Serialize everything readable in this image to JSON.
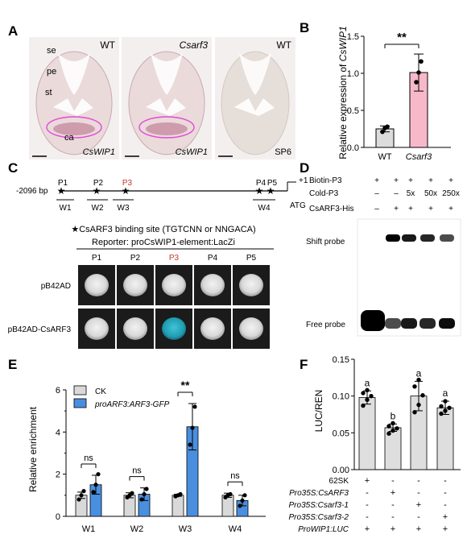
{
  "colors": {
    "wt": "#dcdcdc",
    "csarf3": "#f7b9ca",
    "ck": "#d9d9d9",
    "gfp": "#4a8fdf",
    "bar": "#dedede",
    "tissue": "#eadada",
    "stain": "#b76a86",
    "ring": "#e34bd6",
    "yeast_bg": "#1b1b1b",
    "colony": "#dedede",
    "colony_blue": "#2bb0c6"
  },
  "panelA": {
    "letter": "A",
    "images": [
      {
        "title": "WT",
        "caption": "CsWIP1",
        "stained": true,
        "labels": [
          "se",
          "pe",
          "st",
          "ca"
        ]
      },
      {
        "title": "Csarf3",
        "caption": "CsWIP1",
        "stained": true,
        "labels": []
      },
      {
        "title": "WT",
        "caption": "SP6",
        "stained": false,
        "labels": []
      }
    ]
  },
  "panelB": {
    "letter": "B",
    "chart_data": {
      "type": "bar",
      "categories": [
        "WT",
        "Csarf3"
      ],
      "values": [
        0.25,
        1.01
      ],
      "errors": [
        0.04,
        0.25
      ],
      "points": [
        [
          0.21,
          0.26,
          0.28
        ],
        [
          0.88,
          1.01,
          1.16
        ]
      ],
      "ylabel_prefix": "Relative expression of ",
      "ylabel_gene": "CsWIP1",
      "ylim": [
        0,
        1.5
      ],
      "yticks": [
        "0.0",
        "0.5",
        "1.0",
        "1.5"
      ],
      "significance": "**"
    }
  },
  "panelC": {
    "letter": "C",
    "start": "-2096 bp",
    "tss": "+1",
    "atg": "ATG",
    "sites": [
      "P1",
      "P2",
      "P3",
      "P4",
      "P5"
    ],
    "regions": [
      "W1",
      "W2",
      "W3",
      "W4"
    ],
    "legend": "★CsARF3 binding site (TGTCNN or NNGACA)",
    "reporter": "Reporter: proCsWIP1-element:LacZi",
    "rows": [
      {
        "label": "pB42AD",
        "blue": [
          false,
          false,
          false,
          false,
          false
        ]
      },
      {
        "label": "pB42AD-CsARF3",
        "blue": [
          false,
          false,
          true,
          false,
          false
        ]
      }
    ]
  },
  "panelD": {
    "letter": "D",
    "rows": [
      {
        "label": "Biotin-P3",
        "values": [
          "+",
          "+",
          "+",
          "+",
          "+"
        ]
      },
      {
        "label": "Cold-P3",
        "values": [
          "–",
          "–",
          "5x",
          "50x",
          "250x"
        ]
      },
      {
        "label": "CsARF3-His",
        "values": [
          "–",
          "+",
          "+",
          "+",
          "+"
        ]
      }
    ],
    "shift_label": "Shift probe",
    "free_label": "Free probe"
  },
  "panelE": {
    "letter": "E",
    "chart_data": {
      "type": "bar",
      "categories": [
        "W1",
        "W2",
        "W3",
        "W4"
      ],
      "series": [
        {
          "name": "CK",
          "values": [
            1.0,
            1.0,
            1.0,
            1.0
          ],
          "errors": [
            0.15,
            0.12,
            0.05,
            0.1
          ],
          "points": [
            [
              0.8,
              1.0,
              1.2
            ],
            [
              0.9,
              1.0,
              1.1
            ],
            [
              0.95,
              1.0,
              1.05
            ],
            [
              0.9,
              1.0,
              1.05
            ]
          ]
        },
        {
          "name": "proARF3:ARF3-GFP",
          "values": [
            1.5,
            1.05,
            4.25,
            0.75
          ],
          "errors": [
            0.45,
            0.3,
            1.1,
            0.25
          ],
          "points": [
            [
              1.15,
              1.5,
              2.0
            ],
            [
              0.8,
              1.05,
              1.3
            ],
            [
              3.4,
              4.2,
              5.2
            ],
            [
              0.5,
              0.75,
              1.0
            ]
          ]
        }
      ],
      "ylabel": "Relative enrichment",
      "ylim": [
        0,
        6
      ],
      "yticks": [
        "0",
        "2",
        "4",
        "6"
      ],
      "significance": [
        "ns",
        "ns",
        "**",
        "ns"
      ]
    }
  },
  "panelF": {
    "letter": "F",
    "chart_data": {
      "type": "bar",
      "categories": [
        "62SK",
        "Pro35S:CsARF3",
        "Pro35S:Csarf3-1",
        "Pro35S:Csarf3-2"
      ],
      "values": [
        0.098,
        0.057,
        0.1,
        0.084
      ],
      "errors": [
        0.009,
        0.005,
        0.02,
        0.009
      ],
      "points": [
        [
          0.087,
          0.095,
          0.1,
          0.104,
          0.108
        ],
        [
          0.049,
          0.053,
          0.056,
          0.059,
          0.063
        ],
        [
          0.078,
          0.088,
          0.101,
          0.113,
          0.122
        ],
        [
          0.076,
          0.08,
          0.084,
          0.086,
          0.093
        ]
      ],
      "letters": [
        "a",
        "b",
        "a",
        "a"
      ],
      "ylabel": "LUC/REN",
      "ylim": [
        0,
        0.15
      ],
      "yticks": [
        "0.00",
        "0.05",
        "0.10",
        "0.15"
      ],
      "table": [
        {
          "label": "62SK",
          "italic": false,
          "values": [
            "+",
            "-",
            "-",
            "-"
          ]
        },
        {
          "label": "Pro35S:CsARF3",
          "italic": true,
          "values": [
            "-",
            "+",
            "-",
            "-"
          ]
        },
        {
          "label": "Pro35S:Csarf3-1",
          "italic": true,
          "values": [
            "-",
            "-",
            "+",
            "-"
          ]
        },
        {
          "label": "Pro35S:Csarf3-2",
          "italic": true,
          "values": [
            "-",
            "-",
            "-",
            "+"
          ]
        },
        {
          "label": "ProWIP1:LUC",
          "italic": true,
          "values": [
            "+",
            "+",
            "+",
            "+"
          ]
        }
      ]
    }
  }
}
